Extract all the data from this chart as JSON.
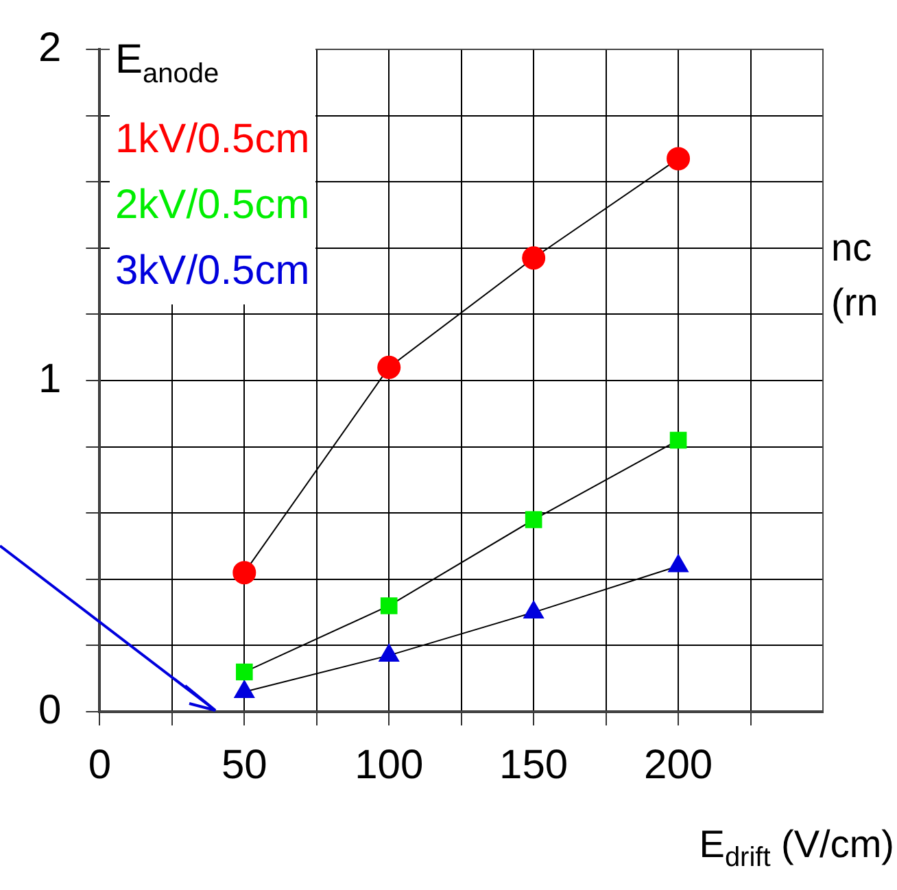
{
  "chart_data": {
    "type": "line",
    "xlabel": "E$_{drift}$ (V/cm)",
    "legend_title": "E$_{anode}$",
    "legend": "top left",
    "grid": true,
    "line_style": "solid",
    "x": [
      50,
      100,
      150,
      200
    ],
    "xlim": [
      0,
      250
    ],
    "xticks": [
      0,
      {
        "value": 25,
        "label": null
      },
      50,
      {
        "value": 75,
        "label": null
      },
      100,
      {
        "value": 125,
        "label": null
      },
      150,
      {
        "value": 175,
        "label": null
      },
      200,
      {
        "value": 225,
        "label": null
      }
    ],
    "ylim": [
      0,
      2
    ],
    "yticks": [
      0,
      {
        "value": 0.2,
        "label": null
      },
      {
        "value": 0.4,
        "label": null
      },
      {
        "value": 0.6,
        "label": null
      },
      {
        "value": 0.8,
        "label": null
      },
      1,
      {
        "value": 1.2,
        "label": null
      },
      {
        "value": 1.4,
        "label": null
      },
      {
        "value": 1.6,
        "label": null
      },
      {
        "value": 1.8,
        "label": null
      },
      2
    ],
    "series": [
      {
        "name": "1kV/0.5cm",
        "color": "#ff0000",
        "marker": "circle",
        "values": [
          0.42,
          1.04,
          1.37,
          1.67
        ]
      },
      {
        "name": "2kV/0.5cm",
        "color": "#00ee00",
        "marker": "square",
        "values": [
          0.12,
          0.32,
          0.58,
          0.82
        ]
      },
      {
        "name": "3kV/0.5cm",
        "color": "#0000dd",
        "marker": "triangle",
        "values": [
          0.06,
          0.17,
          0.3,
          0.44
        ]
      }
    ],
    "annotations": [
      "nc",
      "(rn"
    ]
  }
}
